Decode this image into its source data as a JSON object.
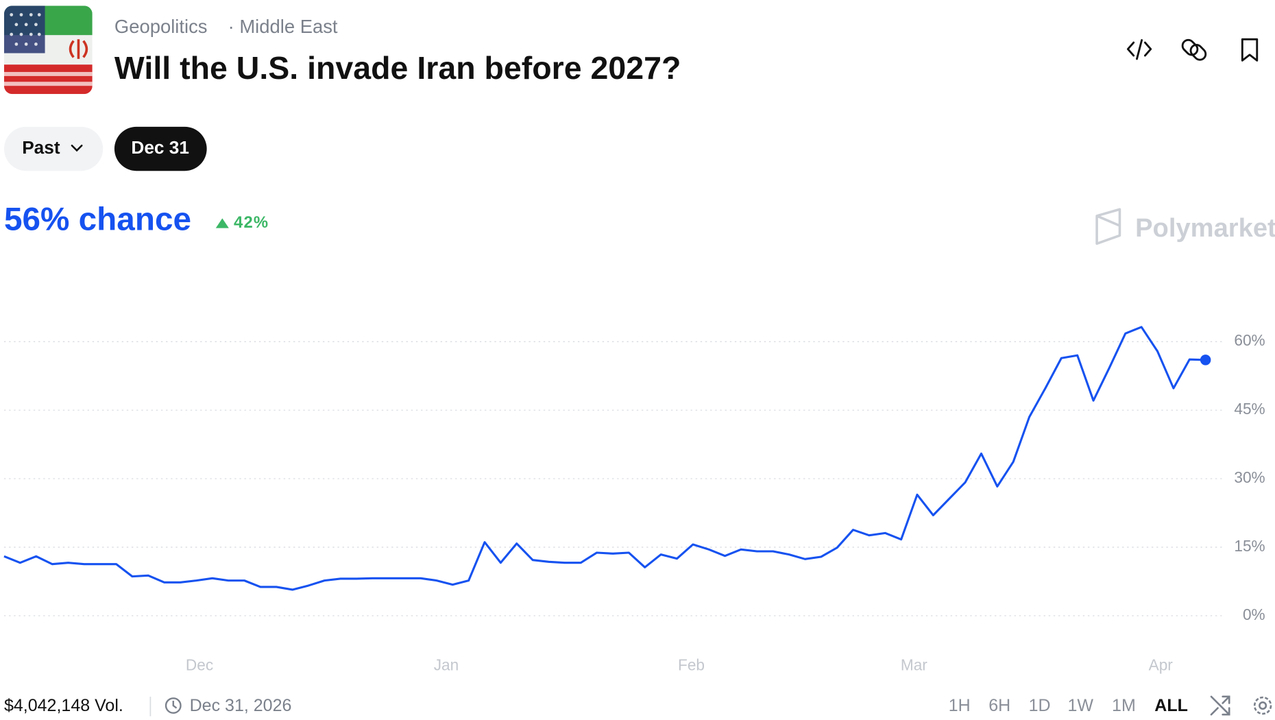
{
  "header": {
    "breadcrumb": [
      "Geopolitics",
      "Middle East"
    ],
    "title": "Will the U.S. invade Iran before 2027?"
  },
  "filters": [
    "Past",
    "Dec 31"
  ],
  "headline": {
    "chance": "56% chance",
    "change": "42%"
  },
  "brand": "Polymarket",
  "chart_data": {
    "type": "line",
    "color": "#1652f0",
    "grid": true,
    "values": [
      13,
      11.6,
      13,
      11.3,
      11.6,
      11.3,
      11.3,
      11.3,
      8.6,
      8.8,
      7.3,
      7.3,
      7.7,
      8.2,
      7.7,
      7.7,
      6.3,
      6.3,
      5.7,
      6.6,
      7.7,
      8.1,
      8.1,
      8.2,
      8.2,
      8.2,
      8.2,
      7.7,
      6.8,
      7.7,
      16.1,
      11.6,
      15.8,
      12.2,
      11.8,
      11.6,
      11.6,
      13.8,
      13.6,
      13.8,
      10.6,
      13.4,
      12.5,
      15.6,
      14.5,
      13.1,
      14.5,
      14.1,
      14.1,
      13.4,
      12.4,
      12.9,
      14.9,
      18.8,
      17.6,
      18.1,
      16.7,
      26.5,
      22,
      25.6,
      29.2,
      35.5,
      28.3,
      33.7,
      43.5,
      49.8,
      56.4,
      57,
      47.1,
      54.3,
      61.8,
      63.2,
      57.9,
      49.8,
      56.1,
      56
    ],
    "xlim": [
      0,
      75
    ],
    "xticks": [
      {
        "value": 12.2,
        "label": "Dec"
      },
      {
        "value": 27.6,
        "label": "Jan"
      },
      {
        "value": 42.9,
        "label": "Feb"
      },
      {
        "value": 56.8,
        "label": "Mar"
      },
      {
        "value": 72.2,
        "label": "Apr"
      }
    ],
    "ylim": [
      -5,
      70
    ],
    "yticks": [
      {
        "value": 0,
        "label": "0%"
      },
      {
        "value": 15,
        "label": "15%"
      },
      {
        "value": 30,
        "label": "30%"
      },
      {
        "value": 45,
        "label": "45%"
      },
      {
        "value": 60,
        "label": "60%"
      }
    ]
  },
  "footer": {
    "volume": "$4,042,148 Vol.",
    "end_date": "Dec 31, 2026",
    "ranges": [
      "1H",
      "6H",
      "1D",
      "1W",
      "1M",
      "ALL"
    ]
  }
}
